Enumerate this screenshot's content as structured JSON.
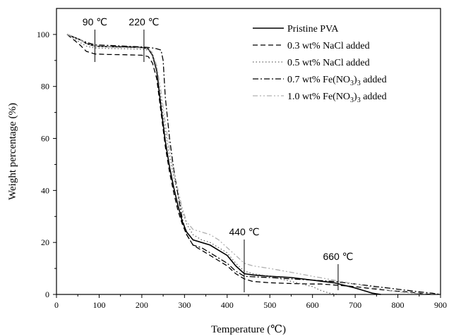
{
  "chart_data": {
    "type": "line",
    "xlabel": "Temperature (℃)",
    "ylabel": "Weight percentage (%)",
    "xlim": [
      0,
      900
    ],
    "ylim": [
      0,
      110
    ],
    "x_ticks": [
      0,
      100,
      200,
      300,
      400,
      500,
      600,
      700,
      800,
      900
    ],
    "y_ticks": [
      0,
      20,
      40,
      60,
      80,
      100
    ],
    "grid": false,
    "legend_position": "top-right",
    "annotations": [
      {
        "label": "90 ℃",
        "x": 90
      },
      {
        "label": "220 ℃",
        "x": 205
      },
      {
        "label": "440 ℃",
        "x": 440
      },
      {
        "label": "660 ℃",
        "x": 660
      }
    ],
    "series": [
      {
        "name": "Pristine PVA",
        "label_parts": [
          "Pristine PVA"
        ],
        "style": "solid",
        "color": "#000000",
        "x": [
          25,
          40,
          55,
          70,
          90,
          120,
          160,
          200,
          215,
          225,
          235,
          245,
          255,
          265,
          275,
          285,
          295,
          305,
          320,
          340,
          360,
          380,
          400,
          420,
          440,
          460,
          500,
          550,
          600,
          650,
          700,
          720,
          740,
          760
        ],
        "y": [
          100,
          99,
          98,
          96.5,
          95.5,
          95.3,
          95.2,
          95,
          94.5,
          92,
          86,
          72,
          59,
          49,
          41,
          34,
          28,
          24,
          21,
          20,
          19,
          17,
          15,
          11,
          8,
          7.5,
          7,
          6.5,
          5.5,
          4.5,
          2.5,
          1.5,
          0.5,
          0
        ]
      },
      {
        "name": "0.3 wt% NaCl added",
        "label_parts": [
          "0.3 wt% NaCl added"
        ],
        "style": "dashed",
        "color": "#000000",
        "x": [
          25,
          40,
          55,
          70,
          90,
          120,
          160,
          200,
          215,
          225,
          235,
          245,
          255,
          265,
          275,
          285,
          295,
          305,
          320,
          340,
          360,
          380,
          400,
          420,
          440,
          460,
          500,
          550,
          600,
          620,
          640,
          660,
          700,
          740,
          780,
          820,
          860,
          880
        ],
        "y": [
          100,
          98,
          96,
          93.5,
          92.5,
          92.3,
          92.2,
          92,
          91.5,
          89,
          83,
          70,
          57,
          47,
          39,
          32,
          27,
          23,
          19,
          17,
          15,
          13,
          11,
          8,
          6,
          5,
          4.5,
          4.2,
          4,
          4,
          3.8,
          3.5,
          3,
          2.2,
          1.5,
          1,
          0.3,
          0
        ]
      },
      {
        "name": "0.5 wt% NaCl added",
        "label_parts": [
          "0.5 wt% NaCl added"
        ],
        "style": "dotted",
        "color": "#666666",
        "x": [
          25,
          40,
          55,
          70,
          90,
          120,
          160,
          200,
          215,
          225,
          235,
          245,
          255,
          265,
          275,
          285,
          295,
          305,
          320,
          340,
          360,
          380,
          400,
          420,
          440,
          460,
          500,
          550,
          600,
          620,
          640,
          660
        ],
        "y": [
          100,
          98.5,
          97,
          95.5,
          94.8,
          94.6,
          94.5,
          94.3,
          94,
          92,
          87,
          75,
          63,
          53,
          45,
          38,
          32,
          27,
          23,
          21,
          20,
          18,
          16,
          12,
          9,
          8,
          7,
          5,
          3,
          1.5,
          0.5,
          0
        ]
      },
      {
        "name": "0.7 wt% Fe(NO3)3 added",
        "label_parts": [
          "0.7 wt% Fe(NO",
          "3",
          ")",
          "3",
          " added"
        ],
        "style": "dashdot",
        "color": "#000000",
        "x": [
          25,
          40,
          55,
          70,
          90,
          120,
          160,
          200,
          215,
          225,
          235,
          245,
          250,
          255,
          265,
          275,
          285,
          295,
          305,
          320,
          340,
          360,
          380,
          400,
          420,
          440,
          460,
          500,
          550,
          600,
          650,
          700,
          750,
          800,
          850,
          880,
          900
        ],
        "y": [
          100,
          99,
          98,
          97,
          96,
          95.8,
          95.5,
          95.2,
          95,
          94.8,
          94.5,
          94,
          90,
          76,
          60,
          48,
          38,
          29,
          23,
          19,
          18,
          16,
          14,
          12,
          9,
          7,
          6.8,
          6.5,
          6,
          5.5,
          5,
          4,
          3,
          2,
          1,
          0.5,
          0
        ]
      },
      {
        "name": "1.0 wt% Fe(NO3)3 added",
        "label_parts": [
          "1.0 wt% Fe(NO",
          "3",
          ")",
          "3",
          " added"
        ],
        "style": "dashdotdot",
        "color": "#b0b0b0",
        "x": [
          25,
          40,
          55,
          70,
          90,
          120,
          160,
          200,
          215,
          225,
          235,
          245,
          255,
          265,
          275,
          285,
          295,
          305,
          320,
          340,
          360,
          380,
          400,
          420,
          440,
          460,
          500,
          550,
          600,
          650,
          700,
          750,
          800,
          850,
          870
        ],
        "y": [
          100,
          99,
          98,
          96.5,
          95.5,
          95.2,
          95,
          94.8,
          94.5,
          93,
          88,
          78,
          66,
          56,
          47,
          40,
          33,
          28,
          25,
          24,
          23,
          21,
          18,
          15,
          12,
          11,
          10,
          8.5,
          7,
          5.5,
          4,
          2.5,
          1,
          0.3,
          0
        ]
      }
    ]
  }
}
